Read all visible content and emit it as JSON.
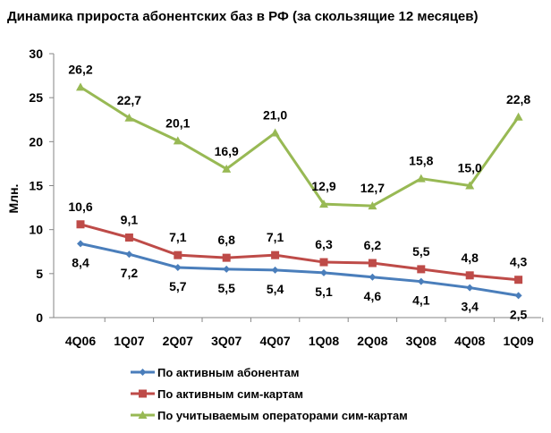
{
  "chart_data": {
    "type": "line",
    "title": "Динамика прироста абонентских баз в РФ (за скользящие 12 месяцев)",
    "ylabel": "Млн.",
    "xlabel": "",
    "ylim": [
      0,
      30
    ],
    "yticks": [
      "0",
      "5",
      "10",
      "15",
      "20",
      "25",
      "30"
    ],
    "categories": [
      "4Q06",
      "1Q07",
      "2Q07",
      "3Q07",
      "4Q07",
      "1Q08",
      "2Q08",
      "3Q08",
      "4Q08",
      "1Q09"
    ],
    "grid": false,
    "legend_position": "bottom",
    "series": [
      {
        "name": "По активным абонентам",
        "color": "#4A7EBB",
        "marker": "diamond",
        "label_pos": "below",
        "values": [
          8.4,
          7.2,
          5.7,
          5.5,
          5.4,
          5.1,
          4.6,
          4.1,
          3.4,
          2.5
        ],
        "labels": [
          "8,4",
          "7,2",
          "5,7",
          "5,5",
          "5,4",
          "5,1",
          "4,6",
          "4,1",
          "3,4",
          "2,5"
        ]
      },
      {
        "name": "По активным сим-картам",
        "color": "#BE4B48",
        "marker": "square",
        "label_pos": "above",
        "values": [
          10.6,
          9.1,
          7.1,
          6.8,
          7.1,
          6.3,
          6.2,
          5.5,
          4.8,
          4.3
        ],
        "labels": [
          "10,6",
          "9,1",
          "7,1",
          "6,8",
          "7,1",
          "6,3",
          "6,2",
          "5,5",
          "4,8",
          "4,3"
        ]
      },
      {
        "name": "По учитываемым операторами сим-картам",
        "color": "#98B954",
        "marker": "triangle",
        "label_pos": "above",
        "values": [
          26.2,
          22.7,
          20.1,
          16.9,
          21.0,
          12.9,
          12.7,
          15.8,
          15.0,
          22.8
        ],
        "labels": [
          "26,2",
          "22,7",
          "20,1",
          "16,9",
          "21,0",
          "12,9",
          "12,7",
          "15,8",
          "15,0",
          "22,8"
        ]
      }
    ]
  }
}
